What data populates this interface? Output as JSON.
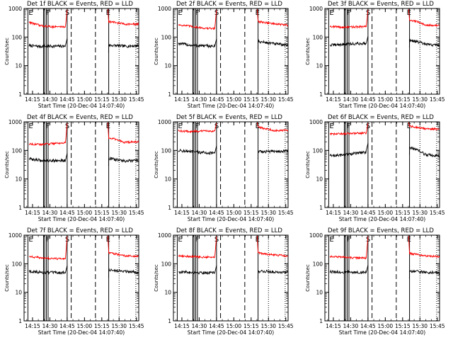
{
  "figure": {
    "xlabel": "Start Time (20-Dec-04 14:07:40)",
    "ylabel": "Counts/sec",
    "x_ticks": [
      "14:15",
      "14:30",
      "14:45",
      "15:00",
      "15:15",
      "15:30",
      "15:45"
    ],
    "y_ticks": [
      "1",
      "10",
      "100",
      "1000"
    ],
    "markers": [
      "E",
      "F",
      "S",
      "E"
    ],
    "colors": {
      "events": "#000000",
      "lld": "#ff0000",
      "axes": "#000000",
      "background": "#ffffff"
    }
  },
  "chart_data": [
    {
      "type": "line",
      "title": "Det 1f BLACK = Events, RED = LLD",
      "xlim": [
        "14:07:40",
        "15:47:00"
      ],
      "ylim": [
        1,
        1000
      ],
      "yscale": "log",
      "series": [
        {
          "name": "BLACK = Events",
          "color": "#000000",
          "points": [
            [
              "14:12",
              50
            ],
            [
              "14:22",
              47
            ],
            [
              "14:27",
              48
            ]
          ],
          "points_after": [
            [
              "15:21",
              52
            ],
            [
              "15:35",
              48
            ],
            [
              "15:47",
              50
            ]
          ],
          "dip": 50
        },
        {
          "name": "RED = LLD",
          "color": "#ff0000",
          "points": [
            [
              "14:12",
              330
            ],
            [
              "14:22",
              250
            ],
            [
              "14:32",
              230
            ]
          ],
          "points_after": [
            [
              "15:21",
              350
            ],
            [
              "15:35",
              285
            ],
            [
              "15:47",
              280
            ]
          ],
          "dip": 230
        }
      ]
    },
    {
      "type": "line",
      "title": "Det 2f BLACK = Events, RED = LLD",
      "xlim": [
        "14:07:40",
        "15:47:00"
      ],
      "ylim": [
        1,
        1000
      ],
      "yscale": "log",
      "series": [
        {
          "name": "BLACK = Events",
          "color": "#000000",
          "points": [
            [
              "14:12",
              60
            ],
            [
              "14:22",
              52
            ],
            [
              "14:41",
              48
            ]
          ],
          "points_after": [
            [
              "15:21",
              70
            ],
            [
              "15:35",
              58
            ],
            [
              "15:47",
              52
            ]
          ],
          "dip": 48
        },
        {
          "name": "RED = LLD",
          "color": "#ff0000",
          "points": [
            [
              "14:12",
              270
            ],
            [
              "14:22",
              240
            ],
            [
              "14:36",
              200
            ]
          ],
          "points_after": [
            [
              "15:21",
              350
            ],
            [
              "15:35",
              290
            ],
            [
              "15:47",
              260
            ]
          ],
          "dip": 200
        }
      ]
    },
    {
      "type": "line",
      "title": "Det 3f BLACK = Events, RED = LLD",
      "xlim": [
        "14:07:40",
        "15:47:00"
      ],
      "ylim": [
        1,
        1000
      ],
      "yscale": "log",
      "series": [
        {
          "name": "BLACK = Events",
          "color": "#000000",
          "points": [
            [
              "14:12",
              52
            ],
            [
              "14:22",
              55
            ],
            [
              "14:41",
              60
            ]
          ],
          "points_after": [
            [
              "15:21",
              80
            ],
            [
              "15:35",
              55
            ],
            [
              "15:47",
              52
            ]
          ],
          "dip": 60
        },
        {
          "name": "RED = LLD",
          "color": "#ff0000",
          "points": [
            [
              "14:12",
              240
            ],
            [
              "14:22",
              220
            ],
            [
              "14:36",
              230
            ]
          ],
          "points_after": [
            [
              "15:21",
              400
            ],
            [
              "15:35",
              270
            ],
            [
              "15:47",
              250
            ]
          ],
          "dip": 230
        }
      ]
    },
    {
      "type": "line",
      "title": "Det 4f BLACK = Events, RED = LLD",
      "xlim": [
        "14:07:40",
        "15:47:00"
      ],
      "ylim": [
        1,
        1000
      ],
      "yscale": "log",
      "series": [
        {
          "name": "BLACK = Events",
          "color": "#000000",
          "points": [
            [
              "14:12",
              50
            ],
            [
              "14:22",
              45
            ],
            [
              "14:38",
              44
            ]
          ],
          "points_after": [
            [
              "15:21",
              52
            ],
            [
              "15:35",
              42
            ],
            [
              "15:47",
              44
            ]
          ],
          "dip": 44
        },
        {
          "name": "RED = LLD",
          "color": "#ff0000",
          "points": [
            [
              "14:12",
              170
            ],
            [
              "14:22",
              160
            ],
            [
              "14:36",
              180
            ]
          ],
          "points_after": [
            [
              "15:21",
              280
            ],
            [
              "15:35",
              190
            ],
            [
              "15:47",
              200
            ]
          ],
          "dip": 180
        }
      ]
    },
    {
      "type": "line",
      "title": "Det 5f BLACK = Events, RED = LLD",
      "xlim": [
        "14:07:40",
        "15:47:00"
      ],
      "ylim": [
        1,
        1000
      ],
      "yscale": "log",
      "series": [
        {
          "name": "BLACK = Events",
          "color": "#000000",
          "points": [
            [
              "14:12",
              100
            ],
            [
              "14:22",
              90
            ],
            [
              "14:41",
              80
            ]
          ],
          "points_after": [
            [
              "15:21",
              90
            ],
            [
              "15:35",
              92
            ],
            [
              "15:47",
              95
            ]
          ],
          "dip": 80
        },
        {
          "name": "RED = LLD",
          "color": "#ff0000",
          "points": [
            [
              "14:12",
              480
            ],
            [
              "14:22",
              460
            ],
            [
              "14:38",
              480
            ]
          ],
          "points_after": [
            [
              "15:21",
              650
            ],
            [
              "15:35",
              500
            ],
            [
              "15:47",
              500
            ]
          ],
          "dip": 480
        }
      ]
    },
    {
      "type": "line",
      "title": "Det 6f BLACK = Events, RED = LLD",
      "xlim": [
        "14:07:40",
        "15:47:00"
      ],
      "ylim": [
        1,
        1000
      ],
      "yscale": "log",
      "series": [
        {
          "name": "BLACK = Events",
          "color": "#000000",
          "points": [
            [
              "14:12",
              65
            ],
            [
              "14:22",
              68
            ],
            [
              "14:41",
              85
            ]
          ],
          "points_after": [
            [
              "15:21",
              130
            ],
            [
              "15:35",
              70
            ],
            [
              "15:47",
              65
            ]
          ],
          "dip": 100
        },
        {
          "name": "RED = LLD",
          "color": "#ff0000",
          "points": [
            [
              "14:12",
              370
            ],
            [
              "14:22",
              380
            ],
            [
              "14:38",
              400
            ]
          ],
          "points_after": [
            [
              "15:21",
              700
            ],
            [
              "15:35",
              570
            ],
            [
              "15:47",
              560
            ]
          ],
          "dip": 400
        }
      ]
    },
    {
      "type": "line",
      "title": "Det 7f BLACK = Events, RED = LLD",
      "xlim": [
        "14:07:40",
        "15:47:00"
      ],
      "ylim": [
        1,
        1000
      ],
      "yscale": "log",
      "series": [
        {
          "name": "BLACK = Events",
          "color": "#000000",
          "points": [
            [
              "14:12",
              55
            ],
            [
              "14:22",
              50
            ],
            [
              "14:38",
              48
            ]
          ],
          "points_after": [
            [
              "15:21",
              60
            ],
            [
              "15:35",
              55
            ],
            [
              "15:47",
              50
            ]
          ],
          "dip": 48
        },
        {
          "name": "RED = LLD",
          "color": "#ff0000",
          "points": [
            [
              "14:12",
              180
            ],
            [
              "14:22",
              160
            ],
            [
              "14:36",
              150
            ]
          ],
          "points_after": [
            [
              "15:21",
              240
            ],
            [
              "15:35",
              190
            ],
            [
              "15:47",
              180
            ]
          ],
          "dip": 150
        }
      ]
    },
    {
      "type": "line",
      "title": "Det 8f BLACK = Events, RED = LLD",
      "xlim": [
        "14:07:40",
        "15:47:00"
      ],
      "ylim": [
        1,
        1000
      ],
      "yscale": "log",
      "series": [
        {
          "name": "BLACK = Events",
          "color": "#000000",
          "points": [
            [
              "14:12",
              52
            ],
            [
              "14:22",
              50
            ],
            [
              "14:41",
              48
            ]
          ],
          "points_after": [
            [
              "15:21",
              55
            ],
            [
              "15:35",
              52
            ],
            [
              "15:47",
              50
            ]
          ],
          "dip": 48
        },
        {
          "name": "RED = LLD",
          "color": "#ff0000",
          "points": [
            [
              "14:12",
              190
            ],
            [
              "14:22",
              180
            ],
            [
              "14:36",
              170
            ]
          ],
          "points_after": [
            [
              "15:21",
              240
            ],
            [
              "15:35",
              200
            ],
            [
              "15:47",
              190
            ]
          ],
          "dip": 170
        }
      ]
    },
    {
      "type": "line",
      "title": "Det 9f BLACK = Events, RED = LLD",
      "xlim": [
        "14:07:40",
        "15:47:00"
      ],
      "ylim": [
        1,
        1000
      ],
      "yscale": "log",
      "series": [
        {
          "name": "BLACK = Events",
          "color": "#000000",
          "points": [
            [
              "14:12",
              52
            ],
            [
              "14:22",
              50
            ],
            [
              "14:41",
              50
            ]
          ],
          "points_after": [
            [
              "15:21",
              55
            ],
            [
              "15:35",
              50
            ],
            [
              "15:47",
              48
            ]
          ],
          "dip": 50
        },
        {
          "name": "RED = LLD",
          "color": "#ff0000",
          "points": [
            [
              "14:12",
              180
            ],
            [
              "14:22",
              170
            ],
            [
              "14:36",
              160
            ]
          ],
          "points_after": [
            [
              "15:21",
              230
            ],
            [
              "15:35",
              190
            ],
            [
              "15:47",
              180
            ]
          ],
          "dip": 160
        }
      ]
    }
  ],
  "markers_time": {
    "E1": "14:11:00",
    "F1": "14:24:30",
    "F2": "14:25:30",
    "F3": "14:27:00",
    "F4": "14:28:30",
    "S": "14:45:00",
    "dash1": "14:48:30",
    "dash2": "15:09:30",
    "E2": "15:21:00",
    "dot1": "15:30:00",
    "dot2": "15:44:30"
  }
}
